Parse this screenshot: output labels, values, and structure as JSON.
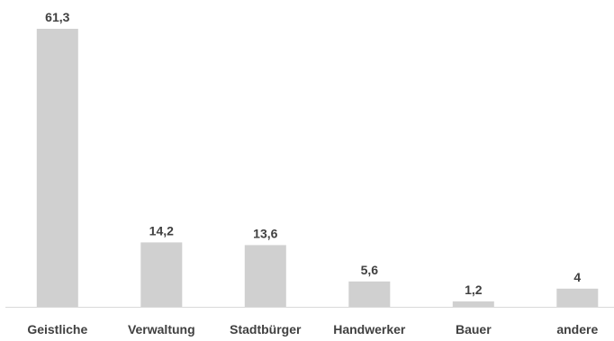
{
  "chart_data": {
    "type": "bar",
    "categories": [
      "Geistliche",
      "Verwaltung",
      "Stadtbürger",
      "Handwerker",
      "Bauer",
      "andere"
    ],
    "values": [
      61.3,
      14.2,
      13.6,
      5.6,
      1.2,
      4
    ],
    "value_labels": [
      "61,3",
      "14,2",
      "13,6",
      "5,6",
      "1,2",
      "4"
    ],
    "title": "",
    "xlabel": "",
    "ylabel": "",
    "ylim": [
      0,
      61.3
    ],
    "grid": false,
    "legend": "none",
    "colors": {
      "bar": "#d0d0d0",
      "axis": "#d9d9d9",
      "text": "#404040"
    }
  }
}
